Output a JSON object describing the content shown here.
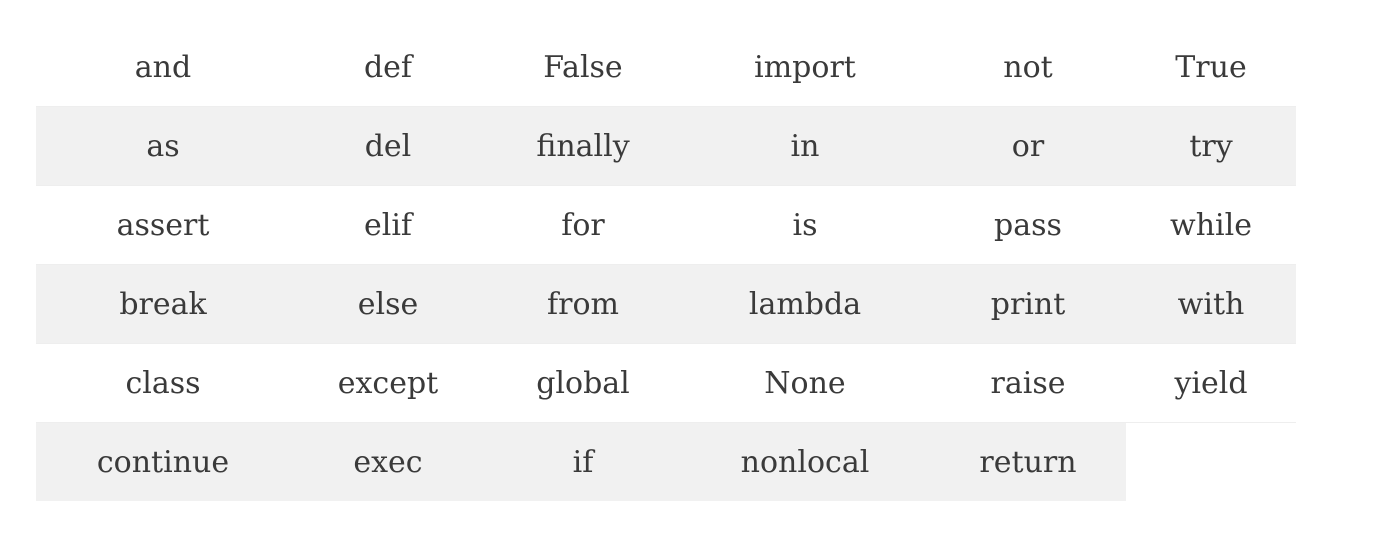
{
  "keywords_table": {
    "rows": [
      [
        "and",
        "def",
        "False",
        "import",
        "not",
        "True"
      ],
      [
        "as",
        "del",
        "finally",
        "in",
        "or",
        "try"
      ],
      [
        "assert",
        "elif",
        "for",
        "is",
        "pass",
        "while"
      ],
      [
        "break",
        "else",
        "from",
        "lambda",
        "print",
        "with"
      ],
      [
        "class",
        "except",
        "global",
        "None",
        "raise",
        "yield"
      ],
      [
        "continue",
        "exec",
        "if",
        "nonlocal",
        "return",
        ""
      ]
    ]
  }
}
